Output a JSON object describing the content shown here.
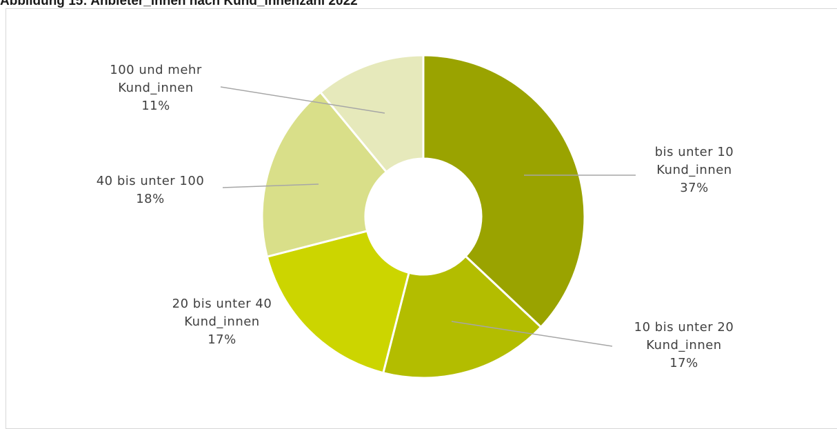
{
  "title": "Abbildung 15: Anbieter_innen nach Kund_innenzahl 2022",
  "chart_data": {
    "type": "pie",
    "donut": true,
    "slices": [
      {
        "label_lines": [
          "bis unter 10",
          "Kund_innen"
        ],
        "pct_label": "37%",
        "value": 37,
        "color": "#9aa300"
      },
      {
        "label_lines": [
          "10 bis unter 20",
          "Kund_innen"
        ],
        "pct_label": "17%",
        "value": 17,
        "color": "#b3bd00"
      },
      {
        "label_lines": [
          "20 bis unter 40",
          "Kund_innen"
        ],
        "pct_label": "17%",
        "value": 17,
        "color": "#ccd500"
      },
      {
        "label_lines": [
          "40 bis unter 100"
        ],
        "pct_label": "18%",
        "value": 18,
        "color": "#d9df89"
      },
      {
        "label_lines": [
          "100 und mehr",
          "Kund_innen"
        ],
        "pct_label": "11%",
        "value": 11,
        "color": "#e6e9bb"
      }
    ],
    "legend": "none",
    "data_labels": "outside with leader lines"
  }
}
